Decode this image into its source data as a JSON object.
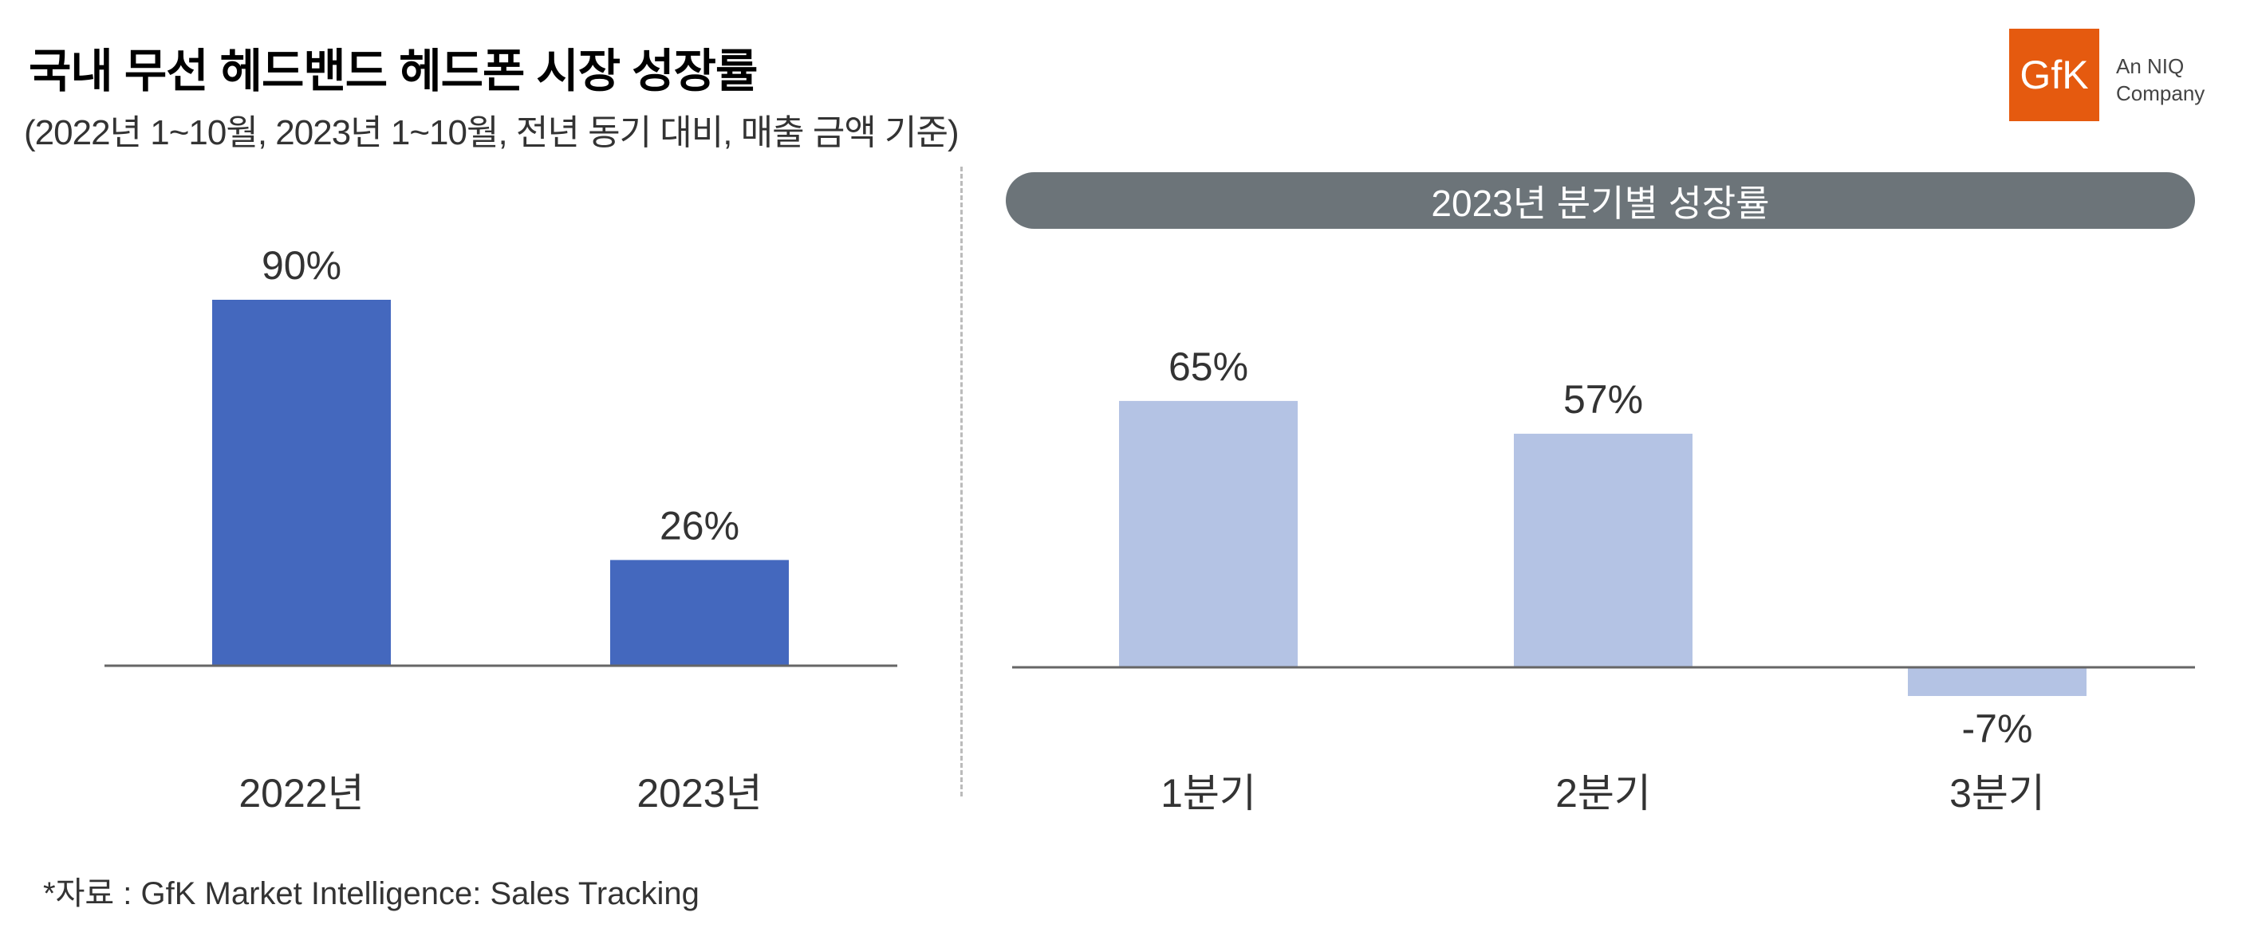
{
  "header": {
    "title": "국내 무선 헤드밴드 헤드폰 시장 성장률",
    "subtitle": "(2022년 1~10월, 2023년 1~10월, 전년 동기 대비, 매출 금액 기준)"
  },
  "logo": {
    "brand": "GfK",
    "tagline_line1": "An NIQ",
    "tagline_line2": "Company",
    "color": "#e55a0f"
  },
  "chart_data": [
    {
      "type": "bar",
      "categories": [
        "2022년",
        "2023년"
      ],
      "values": [
        90,
        26
      ],
      "data_labels": [
        "90%",
        "26%"
      ],
      "unit": "%",
      "color": "#4468be"
    },
    {
      "type": "bar",
      "title": "2023년 분기별 성장률",
      "categories": [
        "1분기",
        "2분기",
        "3분기"
      ],
      "values": [
        65,
        57,
        -7
      ],
      "data_labels": [
        "65%",
        "57%",
        "-7%"
      ],
      "unit": "%",
      "color": "#b4c3e4"
    }
  ],
  "footnote": "*자료 : GfK Market Intelligence: Sales Tracking"
}
